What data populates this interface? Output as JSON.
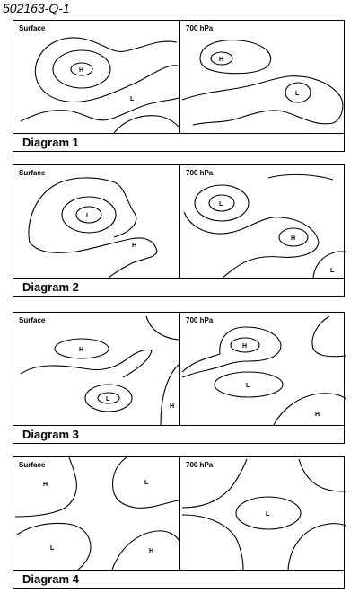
{
  "question_id": "502163-Q-1",
  "diagrams": [
    {
      "caption": "Diagram 1",
      "surface_label": "Surface",
      "upper_label": "700 hPa",
      "surface_centers": [
        {
          "label": "H"
        },
        {
          "label": "L"
        }
      ],
      "upper_centers": [
        {
          "label": "H"
        },
        {
          "label": "L"
        }
      ]
    },
    {
      "caption": "Diagram 2",
      "surface_label": "Surface",
      "upper_label": "700 hPa",
      "surface_centers": [
        {
          "label": "L"
        },
        {
          "label": "H"
        }
      ],
      "upper_centers": [
        {
          "label": "L"
        },
        {
          "label": "H"
        },
        {
          "label": "L"
        }
      ]
    },
    {
      "caption": "Diagram 3",
      "surface_label": "Surface",
      "upper_label": "700 hPa",
      "surface_centers": [
        {
          "label": "H"
        },
        {
          "label": "L"
        },
        {
          "label": "H"
        }
      ],
      "upper_centers": [
        {
          "label": "H"
        },
        {
          "label": "L"
        },
        {
          "label": "H"
        }
      ]
    },
    {
      "caption": "Diagram 4",
      "surface_label": "Surface",
      "upper_label": "700 hPa",
      "surface_centers": [
        {
          "label": "H"
        },
        {
          "label": "L"
        },
        {
          "label": "L"
        },
        {
          "label": "H"
        }
      ],
      "upper_centers": [
        {
          "label": "L"
        }
      ]
    }
  ]
}
